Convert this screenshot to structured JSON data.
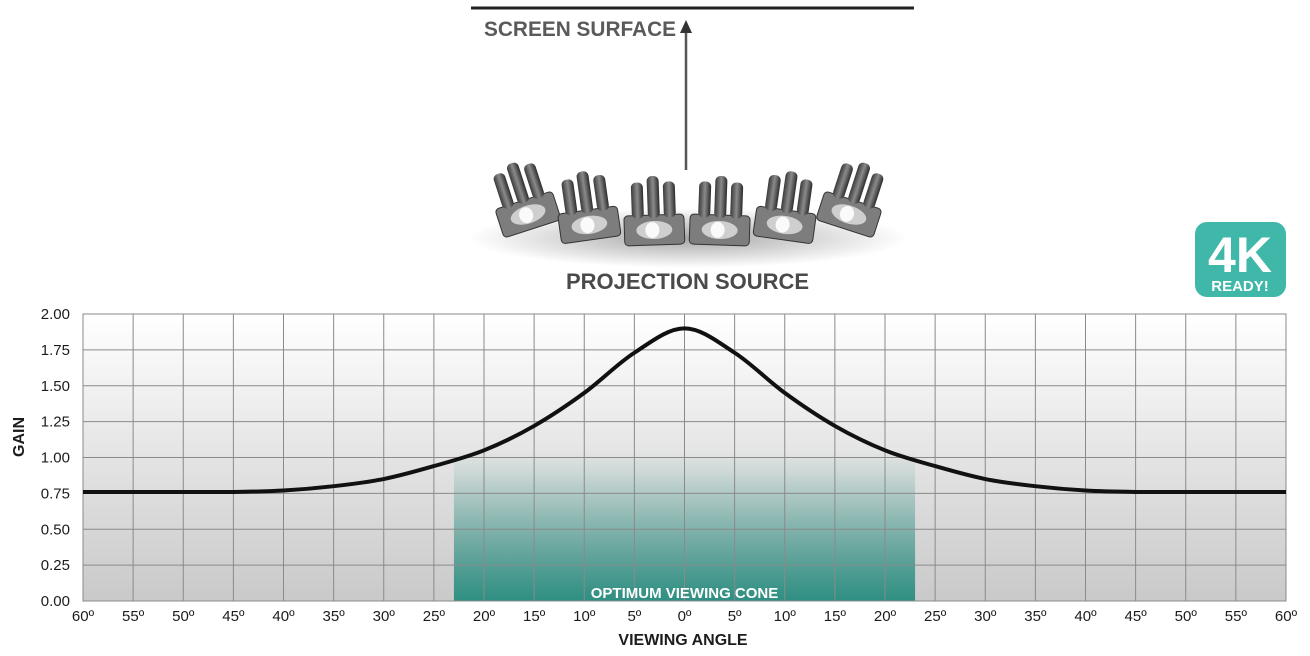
{
  "header": {
    "screen_surface_label": "SCREEN SURFACE",
    "projection_source_label": "PROJECTION SOURCE"
  },
  "badge": {
    "line1": "4K",
    "line2": "READY!",
    "color": "#3fb8a9"
  },
  "colors": {
    "cone": "#2e8f82",
    "curve": "#111111",
    "grid": "#8a8a8a"
  },
  "chart_data": {
    "type": "line",
    "title": "",
    "xlabel": "VIEWING ANGLE",
    "ylabel": "GAIN",
    "xlim": [
      -60,
      60
    ],
    "ylim": [
      0,
      2
    ],
    "grid": true,
    "x_ticks": [
      -60,
      -55,
      -50,
      -45,
      -40,
      -35,
      -30,
      -25,
      -20,
      -15,
      -10,
      -5,
      0,
      5,
      10,
      15,
      20,
      25,
      30,
      35,
      40,
      45,
      50,
      55,
      60
    ],
    "x_tick_labels": [
      "60º",
      "55º",
      "50º",
      "45º",
      "40º",
      "35º",
      "30º",
      "25º",
      "20º",
      "15º",
      "10º",
      "5º",
      "0º",
      "5º",
      "10º",
      "15º",
      "20º",
      "25º",
      "30º",
      "35º",
      "40º",
      "45º",
      "50º",
      "55º",
      "60º"
    ],
    "y_ticks": [
      0,
      0.25,
      0.5,
      0.75,
      1.0,
      1.25,
      1.5,
      1.75,
      2.0
    ],
    "y_tick_labels": [
      "0.00",
      "0.25",
      "0.50",
      "0.75",
      "1.00",
      "1.25",
      "1.50",
      "1.75",
      "2.00"
    ],
    "series": [
      {
        "x": [
          -60,
          -55,
          -50,
          -45,
          -40,
          -35,
          -30,
          -25,
          -20,
          -15,
          -10,
          -5,
          0,
          5,
          10,
          15,
          20,
          25,
          30,
          35,
          40,
          45,
          50,
          55,
          60
        ],
        "values": [
          0.76,
          0.76,
          0.76,
          0.76,
          0.77,
          0.8,
          0.85,
          0.94,
          1.05,
          1.22,
          1.45,
          1.73,
          1.9,
          1.73,
          1.45,
          1.22,
          1.05,
          0.94,
          0.85,
          0.8,
          0.77,
          0.76,
          0.76,
          0.76,
          0.76
        ]
      }
    ],
    "annotations": [
      {
        "text": "OPTIMUM VIEWING CONE",
        "x_range": [
          -23,
          23
        ]
      }
    ]
  }
}
